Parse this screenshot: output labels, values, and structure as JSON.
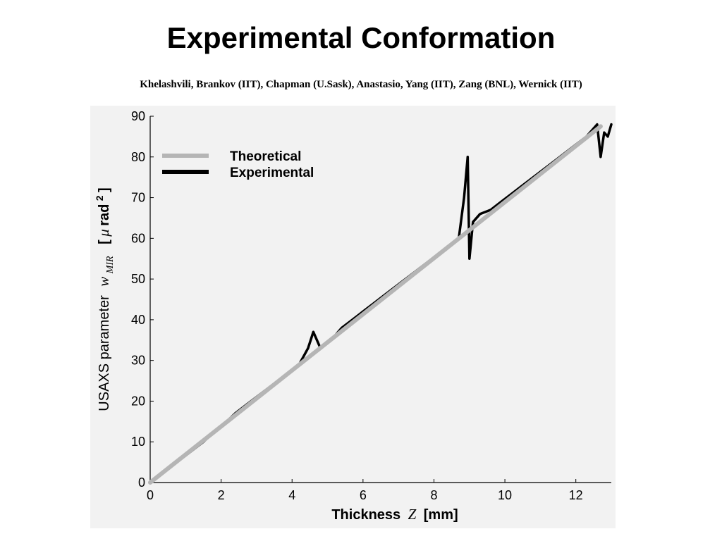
{
  "slide": {
    "title": "Experimental Conformation",
    "authors": "Khelashvili, Brankov (IIT), Chapman (U.Sask), Anastasio, Yang (IIT), Zang (BNL), Wernick (IIT)"
  },
  "chart_data": {
    "type": "line",
    "xlabel": {
      "prefix": "Thickness",
      "variable": "Z",
      "unit": "[mm]"
    },
    "ylabel": {
      "prefix": "USAXS parameter",
      "variable": "w",
      "subscript": "MIR",
      "unit_open": "[",
      "unit_mu": "μ",
      "unit_rad": "rad",
      "unit_exp": "2",
      "unit_close": "]"
    },
    "xlim": [
      0,
      13
    ],
    "ylim": [
      0,
      90
    ],
    "xticks": [
      "0",
      "2",
      "4",
      "6",
      "8",
      "10",
      "12"
    ],
    "yticks": [
      "0",
      "10",
      "20",
      "30",
      "40",
      "50",
      "60",
      "70",
      "80",
      "90"
    ],
    "grid": false,
    "legend_position": "top-left",
    "series": [
      {
        "name": "Theoretical",
        "color": "#b5b5b5",
        "x": [
          0,
          12.7
        ],
        "y": [
          0,
          87.5
        ]
      },
      {
        "name": "Experimental",
        "color": "#000000",
        "x": [
          0,
          0.3,
          0.6,
          0.9,
          1.2,
          1.5,
          1.8,
          2.1,
          2.4,
          2.7,
          3.0,
          3.3,
          3.6,
          3.9,
          4.2,
          4.45,
          4.6,
          4.8,
          5.1,
          5.4,
          5.7,
          6.0,
          6.3,
          6.6,
          6.9,
          7.2,
          7.5,
          7.8,
          8.1,
          8.4,
          8.7,
          8.85,
          8.95,
          9.0,
          9.1,
          9.3,
          9.6,
          9.9,
          10.2,
          10.5,
          10.8,
          11.1,
          11.4,
          11.7,
          12.0,
          12.3,
          12.6,
          12.7,
          12.8,
          12.9,
          13.0
        ],
        "y": [
          0,
          2,
          4,
          6,
          8,
          10,
          12.5,
          14.5,
          17,
          19,
          21,
          23,
          25,
          27,
          29,
          33,
          37,
          33,
          35,
          38,
          40,
          42,
          44,
          46,
          48,
          50,
          52,
          54,
          56,
          58,
          60,
          70,
          80,
          55,
          64,
          66,
          67,
          69,
          71,
          73,
          75,
          77,
          79,
          81,
          83,
          85,
          88,
          80,
          86,
          85,
          88
        ]
      }
    ]
  }
}
